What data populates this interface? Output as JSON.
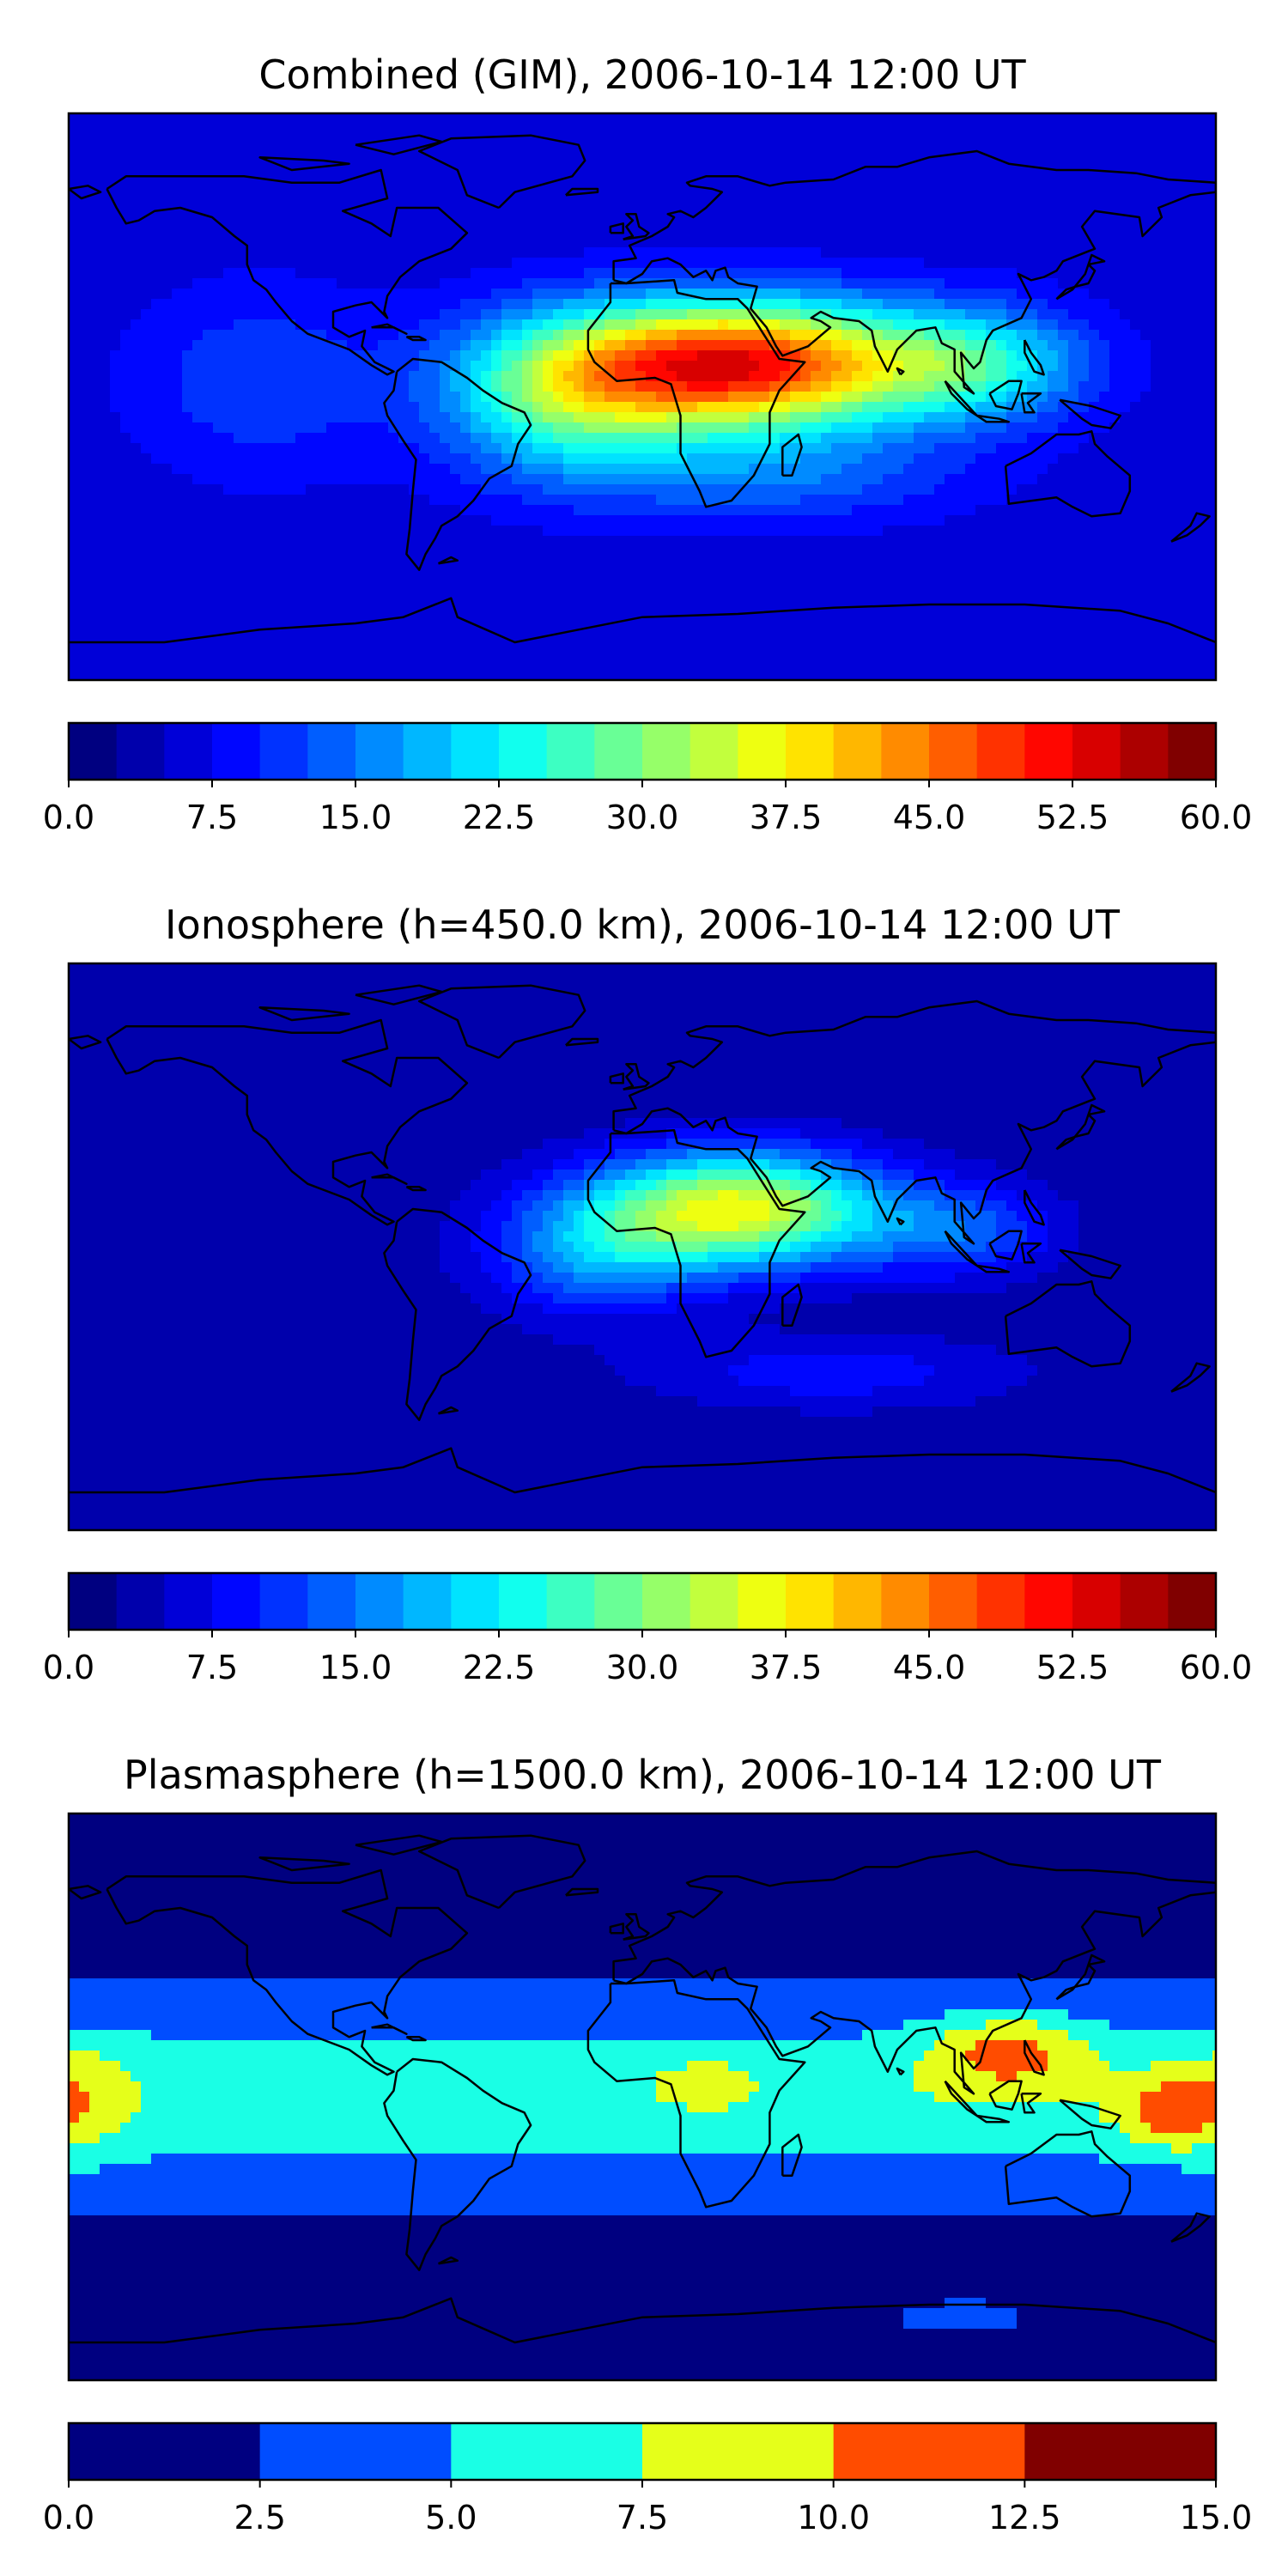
{
  "chart_data": [
    {
      "type": "heatmap",
      "title": "Combined (GIM), 2006-10-14 12:00 UT",
      "map": "world-equirectangular",
      "colormap": "jet",
      "levels": 24,
      "vmin": 0.0,
      "vmax": 60.0,
      "colorbar_ticks": [
        "0.0",
        "7.5",
        "15.0",
        "22.5",
        "30.0",
        "37.5",
        "45.0",
        "52.5",
        "60.0"
      ],
      "field": {
        "background": 6,
        "blobs": [
          {
            "lon": 30,
            "lat": 10,
            "amp": 46,
            "slon": 55,
            "slat": 20
          },
          {
            "lon": -25,
            "lat": 0,
            "amp": 18,
            "slon": 38,
            "slat": 25
          },
          {
            "lon": 105,
            "lat": 10,
            "amp": 16,
            "slon": 35,
            "slat": 18
          },
          {
            "lon": 40,
            "lat": -25,
            "amp": 8,
            "slon": 60,
            "slat": 15
          },
          {
            "lon": -120,
            "lat": 5,
            "amp": 6,
            "slon": 40,
            "slat": 30
          }
        ]
      }
    },
    {
      "type": "heatmap",
      "title": "Ionosphere  (h=450.0 km), 2006-10-14 12:00 UT",
      "map": "world-equirectangular",
      "colormap": "jet",
      "levels": 24,
      "vmin": 0.0,
      "vmax": 60.0,
      "colorbar_ticks": [
        "0.0",
        "7.5",
        "15.0",
        "22.5",
        "30.0",
        "37.5",
        "45.0",
        "52.5",
        "60.0"
      ],
      "field": {
        "background": 3,
        "blobs": [
          {
            "lon": 30,
            "lat": 12,
            "amp": 33,
            "slon": 45,
            "slat": 18
          },
          {
            "lon": -15,
            "lat": -2,
            "amp": 12,
            "slon": 35,
            "slat": 20
          },
          {
            "lon": 100,
            "lat": 5,
            "amp": 10,
            "slon": 30,
            "slat": 15
          },
          {
            "lon": 60,
            "lat": -40,
            "amp": 6,
            "slon": 60,
            "slat": 12
          }
        ]
      }
    },
    {
      "type": "heatmap",
      "title": "Plasmasphere (h=1500.0 km), 2006-10-14 12:00 UT",
      "map": "world-equirectangular",
      "colormap": "jet",
      "levels": 6,
      "vmin": 0.0,
      "vmax": 15.0,
      "colorbar_ticks": [
        "0.0",
        "2.5",
        "5.0",
        "7.5",
        "10.0",
        "12.5",
        "15.0"
      ],
      "field": {
        "background": 1.5,
        "lat_band": {
          "amp": 5.5,
          "center": 0,
          "sigma": 28
        },
        "blobs": [
          {
            "lon": 115,
            "lat": 15,
            "amp": 5.5,
            "slon": 25,
            "slat": 12
          },
          {
            "lon": 165,
            "lat": -5,
            "amp": 4.5,
            "slon": 15,
            "slat": 12
          },
          {
            "lon": -175,
            "lat": 0,
            "amp": 2.5,
            "slon": 15,
            "slat": 20
          },
          {
            "lon": 20,
            "lat": 5,
            "amp": 2.0,
            "slon": 15,
            "slat": 8
          },
          {
            "lon": 100,
            "lat": -70,
            "amp": 2.5,
            "slon": 20,
            "slat": 5
          }
        ]
      }
    }
  ]
}
